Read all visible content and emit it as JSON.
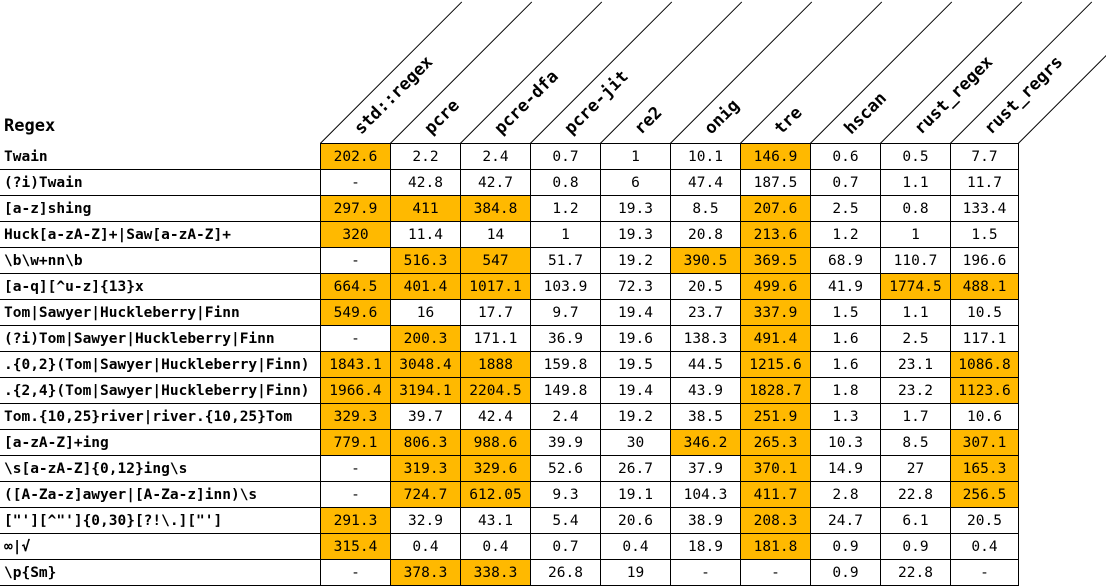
{
  "table": {
    "regex_header": "Regex",
    "highlight_color": "#ffb900",
    "columns": [
      "std::regex",
      "pcre",
      "pcre-dfa",
      "pcre-jit",
      "re2",
      "onig",
      "tre",
      "hscan",
      "rust_regex",
      "rust_regrs"
    ],
    "rows": [
      {
        "label": "Twain",
        "values": [
          "202.6",
          "2.2",
          "2.4",
          "0.7",
          "1",
          "10.1",
          "146.9",
          "0.6",
          "0.5",
          "7.7"
        ],
        "highlight": [
          0,
          6
        ]
      },
      {
        "label": "(?i)Twain",
        "values": [
          "-",
          "42.8",
          "42.7",
          "0.8",
          "6",
          "47.4",
          "187.5",
          "0.7",
          "1.1",
          "11.7"
        ],
        "highlight": []
      },
      {
        "label": "[a-z]shing",
        "values": [
          "297.9",
          "411",
          "384.8",
          "1.2",
          "19.3",
          "8.5",
          "207.6",
          "2.5",
          "0.8",
          "133.4"
        ],
        "highlight": [
          0,
          1,
          2,
          6
        ]
      },
      {
        "label": "Huck[a-zA-Z]+|Saw[a-zA-Z]+",
        "values": [
          "320",
          "11.4",
          "14",
          "1",
          "19.3",
          "20.8",
          "213.6",
          "1.2",
          "1",
          "1.5"
        ],
        "highlight": [
          0,
          6
        ]
      },
      {
        "label": "\\b\\w+nn\\b",
        "values": [
          "-",
          "516.3",
          "547",
          "51.7",
          "19.2",
          "390.5",
          "369.5",
          "68.9",
          "110.7",
          "196.6"
        ],
        "highlight": [
          1,
          2,
          5,
          6
        ]
      },
      {
        "label": "[a-q][^u-z]{13}x",
        "values": [
          "664.5",
          "401.4",
          "1017.1",
          "103.9",
          "72.3",
          "20.5",
          "499.6",
          "41.9",
          "1774.5",
          "488.1"
        ],
        "highlight": [
          0,
          1,
          2,
          6,
          8,
          9
        ]
      },
      {
        "label": "Tom|Sawyer|Huckleberry|Finn",
        "values": [
          "549.6",
          "16",
          "17.7",
          "9.7",
          "19.4",
          "23.7",
          "337.9",
          "1.5",
          "1.1",
          "10.5"
        ],
        "highlight": [
          0,
          6
        ]
      },
      {
        "label": "(?i)Tom|Sawyer|Huckleberry|Finn",
        "values": [
          "-",
          "200.3",
          "171.1",
          "36.9",
          "19.6",
          "138.3",
          "491.4",
          "1.6",
          "2.5",
          "117.1"
        ],
        "highlight": [
          1,
          6
        ]
      },
      {
        "label": ".{0,2}(Tom|Sawyer|Huckleberry|Finn)",
        "values": [
          "1843.1",
          "3048.4",
          "1888",
          "159.8",
          "19.5",
          "44.5",
          "1215.6",
          "1.6",
          "23.1",
          "1086.8"
        ],
        "highlight": [
          0,
          1,
          2,
          6,
          9
        ]
      },
      {
        "label": ".{2,4}(Tom|Sawyer|Huckleberry|Finn)",
        "values": [
          "1966.4",
          "3194.1",
          "2204.5",
          "149.8",
          "19.4",
          "43.9",
          "1828.7",
          "1.8",
          "23.2",
          "1123.6"
        ],
        "highlight": [
          0,
          1,
          2,
          6,
          9
        ]
      },
      {
        "label": "Tom.{10,25}river|river.{10,25}Tom",
        "values": [
          "329.3",
          "39.7",
          "42.4",
          "2.4",
          "19.2",
          "38.5",
          "251.9",
          "1.3",
          "1.7",
          "10.6"
        ],
        "highlight": [
          0,
          6
        ]
      },
      {
        "label": "[a-zA-Z]+ing",
        "values": [
          "779.1",
          "806.3",
          "988.6",
          "39.9",
          "30",
          "346.2",
          "265.3",
          "10.3",
          "8.5",
          "307.1"
        ],
        "highlight": [
          0,
          1,
          2,
          5,
          6,
          9
        ]
      },
      {
        "label": "\\s[a-zA-Z]{0,12}ing\\s",
        "values": [
          "-",
          "319.3",
          "329.6",
          "52.6",
          "26.7",
          "37.9",
          "370.1",
          "14.9",
          "27",
          "165.3"
        ],
        "highlight": [
          1,
          2,
          6,
          9
        ]
      },
      {
        "label": "([A-Za-z]awyer|[A-Za-z]inn)\\s",
        "values": [
          "-",
          "724.7",
          "612.05",
          "9.3",
          "19.1",
          "104.3",
          "411.7",
          "2.8",
          "22.8",
          "256.5"
        ],
        "highlight": [
          1,
          2,
          6,
          9
        ]
      },
      {
        "label": "[\"'][^\"']{0,30}[?!\\.][\"']",
        "values": [
          "291.3",
          "32.9",
          "43.1",
          "5.4",
          "20.6",
          "38.9",
          "208.3",
          "24.7",
          "6.1",
          "20.5"
        ],
        "highlight": [
          0,
          6
        ]
      },
      {
        "label": "∞|√",
        "values": [
          "315.4",
          "0.4",
          "0.4",
          "0.7",
          "0.4",
          "18.9",
          "181.8",
          "0.9",
          "0.9",
          "0.4"
        ],
        "highlight": [
          0,
          6
        ]
      },
      {
        "label": "\\p{Sm}",
        "values": [
          "-",
          "378.3",
          "338.3",
          "26.8",
          "19",
          "-",
          "-",
          "0.9",
          "22.8",
          "-"
        ],
        "highlight": [
          1,
          2
        ]
      }
    ]
  }
}
